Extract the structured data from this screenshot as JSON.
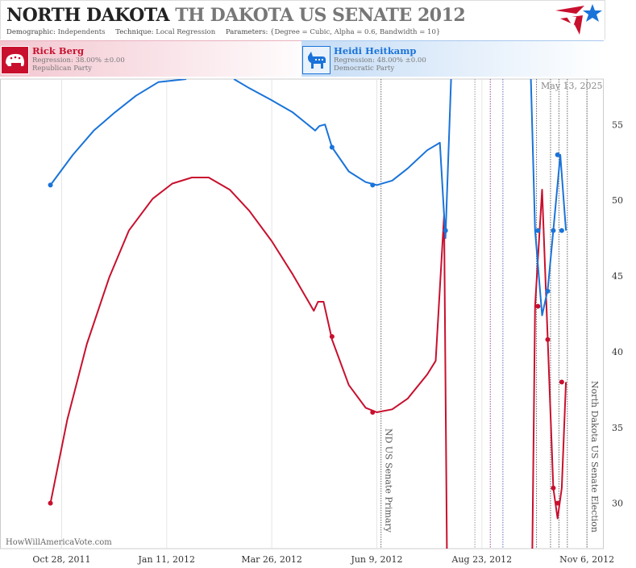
{
  "header": {
    "title_state": "NORTH DAKOTA",
    "title_race": "TH DAKOTA US SENATE 2012",
    "demographic_label": "Demographic:",
    "demographic_value": "Independents",
    "technique_label": "Technique:",
    "technique_value": "Local Regression",
    "parameters_label": "Parameters:",
    "parameters_value": "{Degree = Cubic, Alpha = 0.6, Bandwidth = 10}"
  },
  "candidates": [
    {
      "name": "Rick Berg",
      "regression": "Regression: 38.00% ±0.00",
      "party": "Republican Party",
      "color": "#c8102e",
      "icon": "elephant-icon"
    },
    {
      "name": "Heidi Heitkamp",
      "regression": "Regression: 48.00% ±0.00",
      "party": "Democratic Party",
      "color": "#1a73d9",
      "icon": "donkey-icon"
    }
  ],
  "footer": {
    "watermark": "HowWillAmericaVote.com",
    "date_stamp": "May 13, 2025"
  },
  "chart_data": {
    "type": "line",
    "x_axis_type": "date",
    "xlim": [
      "2011-09-14",
      "2012-11-18"
    ],
    "ylim": [
      27,
      58
    ],
    "x_ticks": [
      {
        "date": "2011-10-28",
        "label": "Oct 28, 2011"
      },
      {
        "date": "2012-01-11",
        "label": "Jan 11, 2012"
      },
      {
        "date": "2012-03-26",
        "label": "Mar 26, 2012"
      },
      {
        "date": "2012-06-09",
        "label": "Jun 9, 2012"
      },
      {
        "date": "2012-08-23",
        "label": "Aug 23, 2012"
      },
      {
        "date": "2012-11-06",
        "label": "Nov 6, 2012"
      }
    ],
    "y_ticks": [
      30,
      35,
      40,
      45,
      50,
      55
    ],
    "grid": "vertical",
    "events": [
      {
        "date": "2012-06-12",
        "label": "ND US Senate Primary",
        "color": "#666",
        "labeled": true
      },
      {
        "date": "2012-08-18",
        "label": "",
        "color": "#999",
        "labeled": false
      },
      {
        "date": "2012-08-29",
        "label": "",
        "color": "#9a4d8e",
        "labeled": false
      },
      {
        "date": "2012-09-07",
        "label": "",
        "color": "#5a6fc0",
        "labeled": false
      },
      {
        "date": "2012-10-01",
        "label": "",
        "color": "#666",
        "labeled": false
      },
      {
        "date": "2012-10-11",
        "label": "",
        "color": "#666",
        "labeled": false
      },
      {
        "date": "2012-10-17",
        "label": "",
        "color": "#666",
        "labeled": false
      },
      {
        "date": "2012-10-23",
        "label": "",
        "color": "#666",
        "labeled": false
      },
      {
        "date": "2012-11-06",
        "label": "North Dakota US Senate Election",
        "color": "#666",
        "labeled": true
      }
    ],
    "series": [
      {
        "name": "Rick Berg",
        "color": "#c8102e",
        "curve": [
          [
            "2011-10-20",
            30.0
          ],
          [
            "2011-11-01",
            35.5
          ],
          [
            "2011-11-15",
            40.5
          ],
          [
            "2011-12-01",
            44.9
          ],
          [
            "2011-12-15",
            48.0
          ],
          [
            "2012-01-01",
            50.1
          ],
          [
            "2012-01-15",
            51.1
          ],
          [
            "2012-01-29",
            51.5
          ],
          [
            "2012-02-10",
            51.5
          ],
          [
            "2012-02-25",
            50.7
          ],
          [
            "2012-03-10",
            49.3
          ],
          [
            "2012-03-26",
            47.3
          ],
          [
            "2012-04-10",
            45.1
          ],
          [
            "2012-04-25",
            42.7
          ],
          [
            "2012-04-28",
            43.3
          ],
          [
            "2012-05-02",
            43.3
          ],
          [
            "2012-05-08",
            40.8
          ],
          [
            "2012-05-20",
            37.8
          ],
          [
            "2012-06-01",
            36.3
          ],
          [
            "2012-06-09",
            36.0
          ],
          [
            "2012-06-20",
            36.2
          ],
          [
            "2012-07-01",
            36.9
          ],
          [
            "2012-07-15",
            38.5
          ],
          [
            "2012-07-21",
            39.4
          ],
          [
            "2012-07-27",
            49.0
          ],
          [
            "2012-07-29",
            27.0
          ],
          null,
          [
            "2012-09-28",
            27.0
          ],
          [
            "2012-09-30",
            43.0
          ],
          [
            "2012-10-05",
            50.7
          ],
          [
            "2012-10-09",
            40.8
          ],
          [
            "2012-10-13",
            31.0
          ],
          [
            "2012-10-16",
            29.0
          ],
          [
            "2012-10-19",
            31.0
          ],
          [
            "2012-10-22",
            38.0
          ]
        ],
        "points": [
          [
            "2011-10-20",
            30
          ],
          [
            "2012-05-08",
            41
          ],
          [
            "2012-06-06",
            36
          ],
          [
            "2012-07-28",
            48
          ],
          [
            "2012-10-02",
            43
          ],
          [
            "2012-10-09",
            40.8
          ],
          [
            "2012-10-13",
            31
          ],
          [
            "2012-10-16",
            30
          ],
          [
            "2012-10-19",
            38
          ]
        ]
      },
      {
        "name": "Heidi Heitkamp",
        "color": "#1a73d9",
        "curve": [
          [
            "2011-10-20",
            51.0
          ],
          [
            "2011-11-05",
            53.0
          ],
          [
            "2011-11-20",
            54.6
          ],
          [
            "2011-12-05",
            55.8
          ],
          [
            "2011-12-20",
            56.9
          ],
          [
            "2012-01-05",
            57.8
          ],
          [
            "2012-01-25",
            58.0
          ],
          null,
          [
            "2012-02-28",
            58.0
          ],
          [
            "2012-03-10",
            57.4
          ],
          [
            "2012-03-26",
            56.6
          ],
          [
            "2012-04-10",
            55.8
          ],
          [
            "2012-04-26",
            54.6
          ],
          [
            "2012-04-29",
            54.9
          ],
          [
            "2012-05-03",
            55.0
          ],
          [
            "2012-05-08",
            53.5
          ],
          [
            "2012-05-20",
            51.9
          ],
          [
            "2012-06-01",
            51.2
          ],
          [
            "2012-06-09",
            51.0
          ],
          [
            "2012-06-20",
            51.3
          ],
          [
            "2012-07-01",
            52.1
          ],
          [
            "2012-07-15",
            53.3
          ],
          [
            "2012-07-24",
            53.8
          ],
          [
            "2012-07-28",
            47.5
          ],
          [
            "2012-08-01",
            58.0
          ],
          null,
          [
            "2012-09-27",
            58.0
          ],
          [
            "2012-09-30",
            48.0
          ],
          [
            "2012-10-05",
            42.4
          ],
          [
            "2012-10-09",
            44.1
          ],
          [
            "2012-10-13",
            48.0
          ],
          [
            "2012-10-18",
            53.0
          ],
          [
            "2012-10-22",
            48.0
          ]
        ],
        "points": [
          [
            "2011-10-20",
            51
          ],
          [
            "2012-05-08",
            53.5
          ],
          [
            "2012-06-06",
            51
          ],
          [
            "2012-07-28",
            48
          ],
          [
            "2012-10-02",
            48
          ],
          [
            "2012-10-09",
            44
          ],
          [
            "2012-10-13",
            48
          ],
          [
            "2012-10-16",
            53
          ],
          [
            "2012-10-19",
            48
          ]
        ]
      }
    ]
  }
}
